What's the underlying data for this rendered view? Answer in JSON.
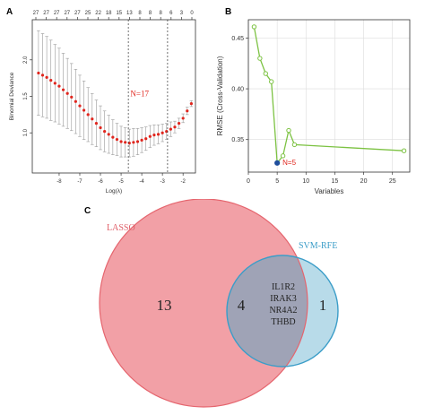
{
  "panel_labels": {
    "a": "A",
    "b": "B",
    "c": "C"
  },
  "chart_data": [
    {
      "panel": "A",
      "type": "line",
      "xlabel": "Log(λ)",
      "ylabel": "Binomial Deviance",
      "xlim": [
        -9.3,
        -1.4
      ],
      "ylim": [
        0.45,
        2.55
      ],
      "x_ticks": [
        -8,
        -7,
        -6,
        -5,
        -4,
        -3,
        -2
      ],
      "y_ticks": [
        1.0,
        1.5,
        2.0
      ],
      "top_ticks": [
        "27",
        "27",
        "27",
        "27",
        "27",
        "25",
        "22",
        "18",
        "15",
        "13",
        "8",
        "8",
        "8",
        "6",
        "3",
        "0"
      ],
      "vlines": [
        -4.65,
        -2.75
      ],
      "annotation": "N=17",
      "x": [
        -9.0,
        -8.8,
        -8.6,
        -8.4,
        -8.2,
        -8.0,
        -7.8,
        -7.6,
        -7.4,
        -7.2,
        -7.0,
        -6.8,
        -6.6,
        -6.4,
        -6.2,
        -6.0,
        -5.8,
        -5.6,
        -5.4,
        -5.2,
        -5.0,
        -4.8,
        -4.6,
        -4.4,
        -4.2,
        -4.0,
        -3.8,
        -3.6,
        -3.4,
        -3.2,
        -3.0,
        -2.8,
        -2.6,
        -2.4,
        -2.2,
        -2.0,
        -1.8,
        -1.6
      ],
      "y": [
        1.82,
        1.79,
        1.76,
        1.72,
        1.68,
        1.64,
        1.59,
        1.54,
        1.49,
        1.43,
        1.37,
        1.31,
        1.25,
        1.19,
        1.13,
        1.07,
        1.02,
        0.98,
        0.94,
        0.91,
        0.88,
        0.87,
        0.86,
        0.87,
        0.88,
        0.9,
        0.92,
        0.95,
        0.97,
        0.98,
        1.0,
        1.02,
        1.05,
        1.08,
        1.13,
        1.2,
        1.3,
        1.4
      ],
      "err": [
        0.58,
        0.57,
        0.56,
        0.55,
        0.53,
        0.52,
        0.5,
        0.48,
        0.46,
        0.44,
        0.42,
        0.4,
        0.37,
        0.35,
        0.32,
        0.3,
        0.28,
        0.26,
        0.24,
        0.22,
        0.21,
        0.2,
        0.19,
        0.19,
        0.18,
        0.17,
        0.16,
        0.15,
        0.14,
        0.13,
        0.12,
        0.11,
        0.1,
        0.08,
        0.07,
        0.06,
        0.05,
        0.04
      ]
    },
    {
      "panel": "B",
      "type": "line",
      "xlabel": "Variables",
      "ylabel": "RMSE (Cross-Validation)",
      "xlim": [
        0,
        28
      ],
      "ylim": [
        0.318,
        0.468
      ],
      "x_ticks": [
        0,
        5,
        10,
        15,
        20,
        25
      ],
      "y_ticks": [
        0.35,
        0.4,
        0.45
      ],
      "x": [
        1,
        2,
        3,
        4,
        5,
        6,
        7,
        8,
        27
      ],
      "y": [
        0.461,
        0.43,
        0.415,
        0.407,
        0.327,
        0.334,
        0.359,
        0.345,
        0.339
      ],
      "highlight_index": 4,
      "annotation": "N=5",
      "line_color": "#7cc242",
      "highlight_color": "#1f4e9c"
    }
  ],
  "venn": {
    "set_a": {
      "label": "LASSO",
      "only_count": "13",
      "fill": "#f2a0a6",
      "stroke": "#e5656e"
    },
    "set_b": {
      "label": "SVM-RFE",
      "only_count": "1",
      "fill": "#b8dbe9",
      "stroke": "#3b9dc8"
    },
    "overlap_fill": "#9fa3b6",
    "intersection_count": "4",
    "intersection_genes": [
      "IL1R2",
      "IRAK3",
      "NR4A2",
      "THBD"
    ]
  }
}
